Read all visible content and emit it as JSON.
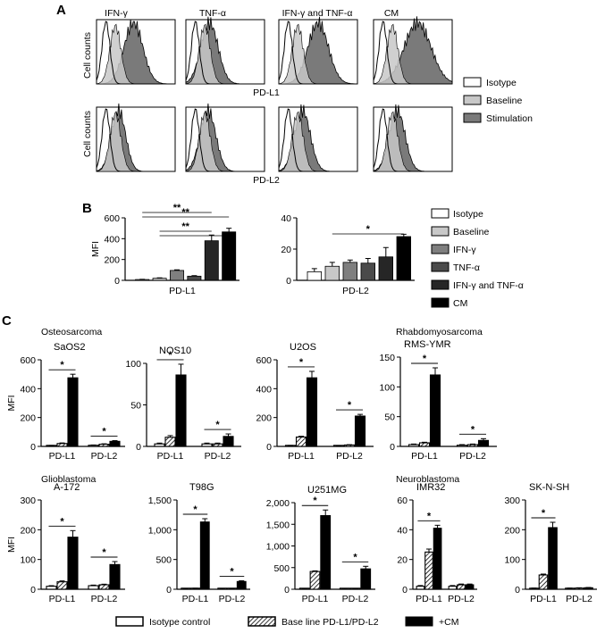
{
  "panel_labels": {
    "a": "A",
    "b": "B",
    "c": "C"
  },
  "panel_a": {
    "columns": [
      "IFN-γ",
      "TNF-α",
      "IFN-γ and TNF-α",
      "CM"
    ],
    "row_labels": [
      "PD-L1",
      "PD-L2"
    ],
    "ylabel": "Cell counts",
    "legend": [
      "Isotype",
      "Baseline",
      "Stimulation"
    ],
    "colors": {
      "isotype": "#ffffff",
      "baseline": "#c8c8c8",
      "stimulation": "#7a7a7a"
    }
  },
  "chart_data": [
    {
      "id": "b1",
      "type": "bar",
      "title": "",
      "xlabel": "PD-L1",
      "ylabel": "MFI",
      "ylim": [
        0,
        600
      ],
      "yticks": [
        "0",
        "200",
        "400",
        "600"
      ],
      "categories": [
        "Isotype",
        "Baseline",
        "IFN-γ",
        "TNF-α",
        "IFN-γ and TNF-α",
        "CM"
      ],
      "values": [
        8,
        20,
        95,
        40,
        380,
        465
      ],
      "errors": [
        2,
        4,
        6,
        5,
        55,
        35
      ],
      "significance": [
        {
          "from": 0,
          "to": 4,
          "label": "**"
        },
        {
          "from": 0,
          "to": 5,
          "label": "**"
        },
        {
          "from": 1,
          "to": 4,
          "label": "**"
        },
        {
          "from": 1,
          "to": 5,
          "label": ""
        }
      ]
    },
    {
      "id": "b2",
      "type": "bar",
      "title": "",
      "xlabel": "PD-L2",
      "ylabel": "",
      "ylim": [
        0,
        40
      ],
      "yticks": [
        "0",
        "20",
        "40"
      ],
      "categories": [
        "Isotype",
        "Baseline",
        "IFN-γ",
        "TNF-α",
        "IFN-γ and TNF-α",
        "CM"
      ],
      "values": [
        5.5,
        9,
        11.5,
        11,
        15,
        28
      ],
      "errors": [
        2,
        2.5,
        1.5,
        3,
        6,
        1.5
      ],
      "significance": [
        {
          "from": 1,
          "to": 5,
          "label": "*"
        }
      ]
    },
    {
      "id": "c1",
      "type": "bar",
      "title": "SaOS2",
      "xlabel": "",
      "ylabel": "MFI",
      "ylim": [
        0,
        600
      ],
      "yticks": [
        "0",
        "200",
        "400",
        "600"
      ],
      "groups": [
        "PD-L1",
        "PD-L2"
      ],
      "series_names": [
        "Isotype control",
        "Base line PD-L1/PD-L2",
        "+CM"
      ],
      "values": [
        [
          5,
          20,
          475
        ],
        [
          8,
          15,
          35
        ]
      ],
      "errors": [
        [
          2,
          4,
          25
        ],
        [
          2,
          3,
          5
        ]
      ],
      "significance": [
        {
          "group": 0,
          "label": "*"
        },
        {
          "group": 1,
          "label": "*"
        }
      ]
    },
    {
      "id": "c2",
      "type": "bar",
      "title": "NOS10",
      "xlabel": "",
      "ylabel": "",
      "ylim": [
        0,
        100
      ],
      "yticks": [
        "0",
        "50",
        "100"
      ],
      "groups": [
        "PD-L1",
        "PD-L2"
      ],
      "series_names": [
        "Isotype control",
        "Base line PD-L1/PD-L2",
        "+CM"
      ],
      "values": [
        [
          3,
          11,
          86
        ],
        [
          3,
          3,
          12
        ]
      ],
      "errors": [
        [
          1,
          2,
          13
        ],
        [
          1,
          1,
          3
        ]
      ],
      "significance": [
        {
          "group": 0,
          "label": "*"
        },
        {
          "group": 1,
          "label": "*"
        }
      ]
    },
    {
      "id": "c3",
      "type": "bar",
      "title": "U2OS",
      "xlabel": "",
      "ylabel": "",
      "ylim": [
        0,
        600
      ],
      "yticks": [
        "0",
        "200",
        "400",
        "600"
      ],
      "groups": [
        "PD-L1",
        "PD-L2"
      ],
      "series_names": [
        "Isotype control",
        "Base line PD-L1/PD-L2",
        "+CM"
      ],
      "values": [
        [
          5,
          65,
          475
        ],
        [
          5,
          10,
          210
        ]
      ],
      "errors": [
        [
          2,
          5,
          45
        ],
        [
          1,
          2,
          12
        ]
      ],
      "significance": [
        {
          "group": 0,
          "label": "*"
        },
        {
          "group": 1,
          "label": "*"
        }
      ]
    },
    {
      "id": "c4",
      "type": "bar",
      "title": "RMS-YMR",
      "xlabel": "",
      "ylabel": "",
      "ylim": [
        0,
        150
      ],
      "yticks": [
        "0",
        "50",
        "100",
        "150"
      ],
      "groups": [
        "PD-L1",
        "PD-L2"
      ],
      "series_names": [
        "Isotype control",
        "Base line PD-L1/PD-L2",
        "+CM"
      ],
      "values": [
        [
          3,
          6,
          120
        ],
        [
          2,
          3,
          10
        ]
      ],
      "errors": [
        [
          1,
          1,
          12
        ],
        [
          1,
          1,
          3
        ]
      ],
      "significance": [
        {
          "group": 0,
          "label": "*"
        },
        {
          "group": 1,
          "label": "*"
        }
      ]
    },
    {
      "id": "c5",
      "type": "bar",
      "title": "A-172",
      "xlabel": "",
      "ylabel": "MFI",
      "ylim": [
        0,
        300
      ],
      "yticks": [
        "0",
        "100",
        "200",
        "300"
      ],
      "groups": [
        "PD-L1",
        "PD-L2"
      ],
      "series_names": [
        "Isotype control",
        "Base line PD-L1/PD-L2",
        "+CM"
      ],
      "values": [
        [
          10,
          25,
          175
        ],
        [
          12,
          15,
          83
        ]
      ],
      "errors": [
        [
          2,
          3,
          22
        ],
        [
          2,
          2,
          10
        ]
      ],
      "significance": [
        {
          "group": 0,
          "label": "*"
        },
        {
          "group": 1,
          "label": "*"
        }
      ]
    },
    {
      "id": "c6",
      "type": "bar",
      "title": "T98G",
      "xlabel": "",
      "ylabel": "",
      "ylim": [
        0,
        1500
      ],
      "yticks": [
        "0",
        "500",
        "1,000",
        "1,500"
      ],
      "groups": [
        "PD-L1",
        "PD-L2"
      ],
      "series_names": [
        "Isotype control",
        "Base line PD-L1/PD-L2",
        "+CM"
      ],
      "values": [
        [
          5,
          15,
          1130
        ],
        [
          5,
          5,
          130
        ]
      ],
      "errors": [
        [
          2,
          3,
          55
        ],
        [
          1,
          1,
          12
        ]
      ],
      "significance": [
        {
          "group": 0,
          "label": "*"
        },
        {
          "group": 1,
          "label": "*"
        }
      ]
    },
    {
      "id": "c7",
      "type": "bar",
      "title": "U251MG",
      "xlabel": "",
      "ylabel": "",
      "ylim": [
        0,
        2000
      ],
      "yticks": [
        "0",
        "500",
        "1,000",
        "1,500",
        "2,000"
      ],
      "groups": [
        "PD-L1",
        "PD-L2"
      ],
      "series_names": [
        "Isotype control",
        "Base line PD-L1/PD-L2",
        "+CM"
      ],
      "values": [
        [
          5,
          410,
          1700
        ],
        [
          5,
          15,
          470
        ]
      ],
      "errors": [
        [
          2,
          15,
          130
        ],
        [
          1,
          2,
          60
        ]
      ],
      "significance": [
        {
          "group": 0,
          "label": "*"
        },
        {
          "group": 1,
          "label": "*"
        }
      ]
    },
    {
      "id": "c8",
      "type": "bar",
      "title": "IMR32",
      "xlabel": "",
      "ylabel": "",
      "ylim": [
        0,
        60
      ],
      "yticks": [
        "0",
        "20",
        "40",
        "60"
      ],
      "groups": [
        "PD-L1",
        "PD-L2"
      ],
      "series_names": [
        "Isotype control",
        "Base line PD-L1/PD-L2",
        "+CM"
      ],
      "values": [
        [
          2,
          25,
          41
        ],
        [
          2,
          3,
          3
        ]
      ],
      "errors": [
        [
          0.5,
          2,
          2
        ],
        [
          0.5,
          0.5,
          0.5
        ]
      ],
      "significance": [
        {
          "group": 0,
          "label": "*"
        }
      ]
    },
    {
      "id": "c9",
      "type": "bar",
      "title": "SK-N-SH",
      "xlabel": "",
      "ylabel": "",
      "ylim": [
        0,
        300
      ],
      "yticks": [
        "0",
        "100",
        "200",
        "300"
      ],
      "groups": [
        "PD-L1",
        "PD-L2"
      ],
      "series_names": [
        "Isotype control",
        "Base line PD-L1/PD-L2",
        "+CM"
      ],
      "values": [
        [
          3,
          48,
          207
        ],
        [
          3,
          4,
          5
        ]
      ],
      "errors": [
        [
          1,
          3,
          18
        ],
        [
          1,
          1,
          1
        ]
      ],
      "significance": [
        {
          "group": 0,
          "label": "*"
        }
      ]
    }
  ],
  "panel_c": {
    "categories": [
      "Osteosarcoma",
      "Rhabdomyosarcoma",
      "Glioblastoma",
      "Neuroblastoma"
    ],
    "legend": [
      "Isotype control",
      "Base line PD-L1/PD-L2",
      "+CM"
    ]
  },
  "bar_colors_b": [
    "#ffffff",
    "#c8c8c8",
    "#7f7f7f",
    "#4a4a4a",
    "#262626",
    "#000000"
  ]
}
